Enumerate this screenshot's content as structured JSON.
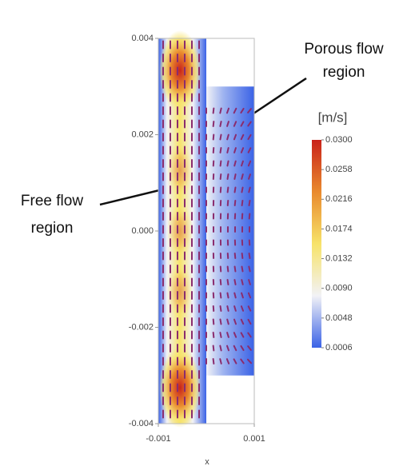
{
  "chart_data": {
    "type": "contour",
    "xlabel": "x",
    "xlim": [
      -0.001,
      0.001
    ],
    "ylim": [
      -0.004,
      0.004
    ],
    "xticks": [
      {
        "value": -0.001,
        "label": "-0.001"
      },
      {
        "value": 0.001,
        "label": "0.001"
      }
    ],
    "yticks": [
      {
        "value": 0.004,
        "label": "0.004"
      },
      {
        "value": 0.002,
        "label": "0.002"
      },
      {
        "value": 0,
        "label": "0.000"
      },
      {
        "value": -0.002,
        "label": "-0.002"
      },
      {
        "value": -0.004,
        "label": "-0.004"
      }
    ],
    "regions": [
      {
        "xlim": [
          -0.001,
          0
        ],
        "ylim": [
          -0.004,
          0.004
        ]
      },
      {
        "xlim": [
          0,
          0.001
        ],
        "ylim": [
          -0.003,
          0.003
        ]
      }
    ],
    "colorbar": {
      "label": "[m/s]",
      "lim": [
        0.0006,
        0.03
      ],
      "colormap": [
        "#3a62e6",
        "#f2f2f6",
        "#f7e36a",
        "#e98a2e",
        "#c9221a"
      ],
      "ticks": [
        {
          "value": 0.03,
          "label": "0.0300"
        },
        {
          "value": 0.0258,
          "label": "0.0258"
        },
        {
          "value": 0.0216,
          "label": "0.0216"
        },
        {
          "value": 0.0174,
          "label": "0.0174"
        },
        {
          "value": 0.0132,
          "label": "0.0132"
        },
        {
          "value": 0.009,
          "label": "0.0090"
        },
        {
          "value": 0.0048,
          "label": "0.0048"
        },
        {
          "value": 0.0006,
          "label": "0.0006"
        }
      ]
    },
    "annotations": [
      {
        "lines": [
          "Porous flow",
          "region"
        ]
      },
      {
        "lines": [
          "Free flow",
          "region"
        ]
      }
    ]
  }
}
